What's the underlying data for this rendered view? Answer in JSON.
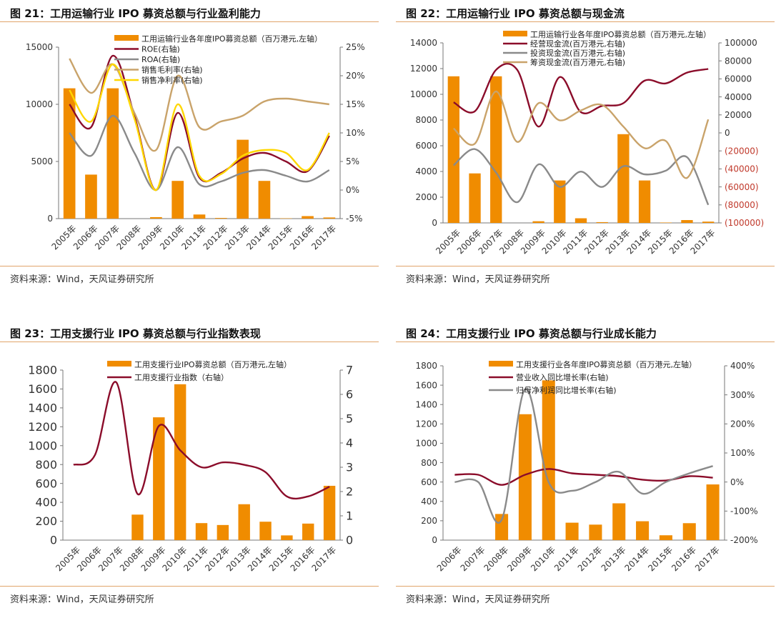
{
  "colors": {
    "bar": "#f08c00",
    "dark_red": "#8b0c2a",
    "gray": "#8a8a8a",
    "tan": "#c9a36a",
    "yellow": "#ffd700",
    "neg_axis_text": "#c0392b",
    "rule": "#e0a46a"
  },
  "chart_data": [
    {
      "type": "bar",
      "title": "图 21：工用运输行业 IPO 募资总额与行业盈利能力",
      "source": "资料来源：Wind，天风证券研究所",
      "categories": [
        "2005年",
        "2006年",
        "2007年",
        "2008年",
        "2009年",
        "2010年",
        "2011年",
        "2012年",
        "2013年",
        "2014年",
        "2015年",
        "2016年",
        "2017年"
      ],
      "y_left": {
        "min": 0,
        "max": 15000,
        "ticks": [
          "0",
          "5000",
          "10000",
          "15000"
        ],
        "tick_values": [
          0,
          5000,
          10000,
          15000
        ]
      },
      "y_right": {
        "min": -5,
        "max": 25,
        "ticks": [
          "-5%",
          "0%",
          "5%",
          "10%",
          "15%",
          "20%",
          "25%"
        ],
        "tick_values": [
          -5,
          0,
          5,
          10,
          15,
          20,
          25
        ]
      },
      "bar_series": {
        "name": "工用运输行业各年度IPO募资总额（百万港元,左轴）",
        "values": [
          11400,
          3850,
          11400,
          0,
          130,
          3300,
          360,
          60,
          6900,
          3300,
          30,
          220,
          100
        ]
      },
      "line_series": [
        {
          "name": "ROE(右轴)",
          "color_key": "dark_red",
          "values": [
            15,
            11,
            23.5,
            13,
            0,
            13.5,
            2.2,
            3,
            5.5,
            6.5,
            5,
            3.3,
            9.5
          ]
        },
        {
          "name": "ROA(右轴)",
          "color_key": "gray",
          "values": [
            10,
            6,
            13,
            6.5,
            0,
            7.5,
            1,
            1.5,
            3,
            3.5,
            2.5,
            1.5,
            3.5
          ]
        },
        {
          "name": "销售毛利率(右轴)",
          "color_key": "tan",
          "values": [
            23,
            17,
            22,
            13.5,
            7,
            20,
            11,
            12,
            13,
            15.5,
            16,
            15.5,
            15
          ]
        },
        {
          "name": "销售净利率(右轴)",
          "color_key": "yellow",
          "values": [
            17.5,
            12,
            22,
            12.5,
            0,
            15,
            2.5,
            2.8,
            6,
            7,
            6.5,
            3.5,
            10
          ]
        }
      ]
    },
    {
      "type": "bar",
      "title": "图 22：工用运输行业 IPO 募资总额与现金流",
      "source": "资料来源：Wind，天风证券研究所",
      "categories": [
        "2005年",
        "2006年",
        "2007年",
        "2008年",
        "2009年",
        "2010年",
        "2011年",
        "2012年",
        "2013年",
        "2014年",
        "2015年",
        "2016年",
        "2017年"
      ],
      "y_left": {
        "min": 0,
        "max": 14000,
        "ticks": [
          "0",
          "2000",
          "4000",
          "6000",
          "8000",
          "10000",
          "12000",
          "14000"
        ],
        "tick_values": [
          0,
          2000,
          4000,
          6000,
          8000,
          10000,
          12000,
          14000
        ]
      },
      "y_right": {
        "min": -100000,
        "max": 100000,
        "ticks": [
          "(100000)",
          "(80000)",
          "(60000)",
          "(40000)",
          "(20000)",
          "0",
          "20000",
          "40000",
          "60000",
          "80000",
          "100000"
        ],
        "tick_values": [
          -100000,
          -80000,
          -60000,
          -40000,
          -20000,
          0,
          20000,
          40000,
          60000,
          80000,
          100000
        ]
      },
      "bar_series": {
        "name": "工用运输行业各年度IPO募资总额（百万港元,左轴）",
        "values": [
          11400,
          3850,
          11400,
          0,
          130,
          3300,
          360,
          60,
          6900,
          3300,
          30,
          220,
          100
        ]
      },
      "line_series": [
        {
          "name": "经营现金流(百万港元,右轴)",
          "color_key": "dark_red",
          "values": [
            34000,
            24000,
            70000,
            70000,
            7000,
            62000,
            23000,
            30000,
            33000,
            58000,
            55000,
            67000,
            71000
          ]
        },
        {
          "name": "投资现金流(百万港元,右轴)",
          "color_key": "gray",
          "values": [
            -36000,
            -18000,
            -44000,
            -77000,
            -35000,
            -60000,
            -43000,
            -60000,
            -37000,
            -46000,
            -42000,
            -27000,
            -80000
          ]
        },
        {
          "name": "筹资现金流(百万港元,右轴)",
          "color_key": "tan",
          "values": [
            5000,
            -12000,
            46000,
            -10000,
            33000,
            14000,
            25000,
            31000,
            7000,
            -17000,
            -9000,
            -50000,
            15000
          ]
        }
      ]
    },
    {
      "type": "bar",
      "title": "图 23：工用支援行业 IPO 募资总额与行业指数表现",
      "source": "资料来源：Wind，天风证券研究所",
      "categories": [
        "2005年",
        "2006年",
        "2007年",
        "2008年",
        "2009年",
        "2010年",
        "2011年",
        "2012年",
        "2013年",
        "2014年",
        "2015年",
        "2016年",
        "2017年"
      ],
      "y_left": {
        "min": 0,
        "max": 1800,
        "ticks": [
          "0",
          "200",
          "400",
          "600",
          "800",
          "1000",
          "1200",
          "1400",
          "1600",
          "1800"
        ],
        "tick_values": [
          0,
          200,
          400,
          600,
          800,
          1000,
          1200,
          1400,
          1600,
          1800
        ]
      },
      "y_right": {
        "min": 0,
        "max": 7,
        "ticks": [
          "0",
          "1",
          "2",
          "3",
          "4",
          "5",
          "6",
          "7"
        ],
        "tick_values": [
          0,
          1,
          2,
          3,
          4,
          5,
          6,
          7
        ]
      },
      "bar_series": {
        "name": "工用支援行业IPO募资总额（百万港元,左轴）",
        "values": [
          0,
          0,
          0,
          270,
          1300,
          1650,
          180,
          160,
          380,
          195,
          50,
          175,
          575
        ]
      },
      "line_series": [
        {
          "name": "工用支援行业指数（右轴）",
          "color_key": "dark_red",
          "values": [
            3.1,
            3.5,
            6.5,
            1.9,
            4.7,
            3.7,
            3.0,
            3.2,
            3.1,
            2.8,
            1.8,
            1.8,
            2.2
          ]
        }
      ]
    },
    {
      "type": "bar",
      "title": "图 24：工用支援行业 IPO 募资总额与行业成长能力",
      "source": "资料来源：Wind，天风证券研究所",
      "categories": [
        "2006年",
        "2007年",
        "2008年",
        "2009年",
        "2010年",
        "2011年",
        "2012年",
        "2013年",
        "2014年",
        "2015年",
        "2016年",
        "2017年"
      ],
      "y_left": {
        "min": 0,
        "max": 1800,
        "ticks": [
          "0",
          "200",
          "400",
          "600",
          "800",
          "1000",
          "1200",
          "1400",
          "1600",
          "1800"
        ],
        "tick_values": [
          0,
          200,
          400,
          600,
          800,
          1000,
          1200,
          1400,
          1600,
          1800
        ]
      },
      "y_right": {
        "min": -200,
        "max": 400,
        "ticks": [
          "-200%",
          "-100%",
          "0%",
          "100%",
          "200%",
          "300%",
          "400%"
        ],
        "tick_values": [
          -200,
          -100,
          0,
          100,
          200,
          300,
          400
        ]
      },
      "bar_series": {
        "name": "工用支援行业各年度IPO募资总额（百万港元,左轴）",
        "values": [
          0,
          0,
          270,
          1300,
          1650,
          180,
          160,
          380,
          195,
          50,
          175,
          575
        ]
      },
      "line_series": [
        {
          "name": "营业收入同比增长率(右轴)",
          "color_key": "dark_red",
          "values": [
            25,
            25,
            -10,
            25,
            45,
            30,
            25,
            20,
            8,
            5,
            20,
            15
          ]
        },
        {
          "name": "归母净利润同比增长率(右轴)",
          "color_key": "gray",
          "values": [
            0,
            0,
            -130,
            320,
            0,
            -30,
            0,
            35,
            -40,
            0,
            30,
            55
          ]
        }
      ]
    }
  ]
}
